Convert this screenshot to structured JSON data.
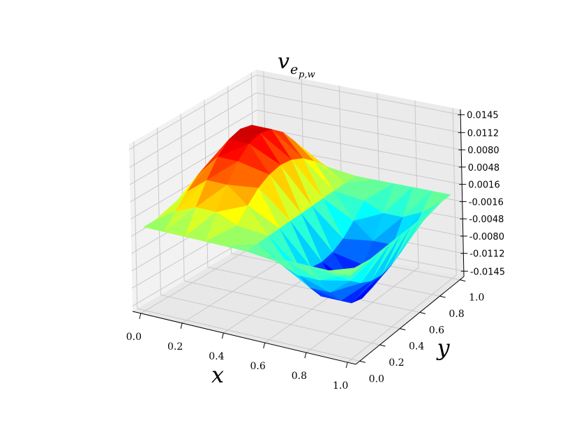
{
  "chart_data": {
    "type": "surface3d",
    "title": "v",
    "title_sub": "e",
    "title_subsub": "p,w",
    "xlabel": "x",
    "ylabel": "y",
    "colormap": "jet",
    "grid": true,
    "x": [
      0,
      0.1,
      0.2,
      0.3,
      0.4,
      0.5,
      0.6,
      0.7,
      0.8,
      0.9,
      1
    ],
    "y": [
      0,
      0.1,
      0.2,
      0.3,
      0.4,
      0.5,
      0.6,
      0.7,
      0.8,
      0.9,
      1
    ],
    "z": [
      [
        0,
        0,
        0,
        0,
        0,
        0,
        0,
        0,
        0,
        0,
        0
      ],
      [
        0,
        0.0025,
        0.0048,
        0.0067,
        0.0078,
        0.0082,
        0.0078,
        0.0067,
        0.0048,
        0.0025,
        0
      ],
      [
        0,
        0.0041,
        0.0078,
        0.0108,
        0.0127,
        0.0133,
        0.0127,
        0.0108,
        0.0078,
        0.0041,
        0
      ],
      [
        0,
        0.0041,
        0.0078,
        0.0108,
        0.0127,
        0.0133,
        0.0127,
        0.0108,
        0.0078,
        0.0041,
        0
      ],
      [
        0,
        0.0025,
        0.0048,
        0.0067,
        0.0078,
        0.0082,
        0.0078,
        0.0067,
        0.0048,
        0.0025,
        0
      ],
      [
        0,
        0,
        0,
        0,
        0,
        0,
        0,
        0,
        0,
        0,
        0
      ],
      [
        0,
        -0.0025,
        -0.0048,
        -0.0067,
        -0.0078,
        -0.0082,
        -0.0078,
        -0.0067,
        -0.0048,
        -0.0025,
        0
      ],
      [
        0,
        -0.0041,
        -0.0078,
        -0.0108,
        -0.0127,
        -0.0133,
        -0.0127,
        -0.0108,
        -0.0078,
        -0.0041,
        0
      ],
      [
        0,
        -0.0041,
        -0.0078,
        -0.0108,
        -0.0127,
        -0.0133,
        -0.0127,
        -0.0108,
        -0.0078,
        -0.0041,
        0
      ],
      [
        0,
        -0.0025,
        -0.0048,
        -0.0067,
        -0.0078,
        -0.0082,
        -0.0078,
        -0.0067,
        -0.0048,
        -0.0025,
        0
      ],
      [
        0,
        0,
        0,
        0,
        0,
        0,
        0,
        0,
        0,
        0,
        0
      ]
    ],
    "xlim": [
      -0.04,
      1.04
    ],
    "ylim": [
      -0.04,
      1.04
    ],
    "zlim": [
      -0.0155,
      0.0155
    ],
    "xticks": [
      {
        "value": 0,
        "label": "0.0"
      },
      0.2,
      0.4,
      0.6,
      0.8,
      {
        "value": 1,
        "label": "1.0"
      }
    ],
    "yticks": [
      {
        "value": 0,
        "label": "0.0"
      },
      0.2,
      0.4,
      0.6,
      0.8,
      {
        "value": 1,
        "label": "1.0"
      }
    ],
    "zticks": [
      {
        "value": -0.0145,
        "label": "-0.0145"
      },
      {
        "value": -0.0112,
        "label": "-0.0112"
      },
      {
        "value": -0.008,
        "label": "-0.0080"
      },
      {
        "value": -0.0048,
        "label": "-0.0048"
      },
      {
        "value": -0.0016,
        "label": "-0.0016"
      },
      {
        "value": 0.0016,
        "label": "0.0016"
      },
      {
        "value": 0.0048,
        "label": "0.0048"
      },
      {
        "value": 0.008,
        "label": "0.0080"
      },
      {
        "value": 0.0112,
        "label": "0.0112"
      },
      {
        "value": 0.0145,
        "label": "0.0145"
      }
    ]
  }
}
